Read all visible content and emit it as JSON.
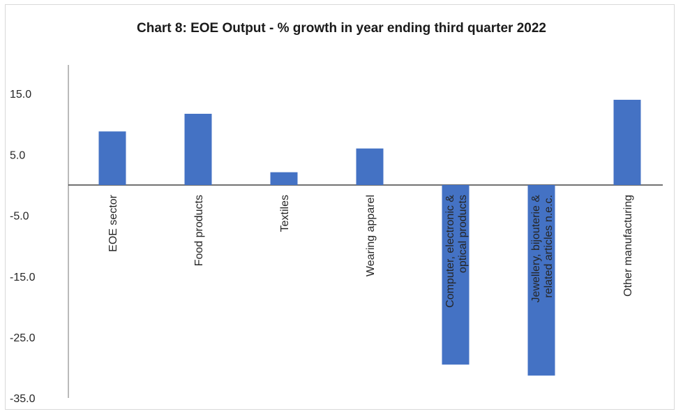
{
  "chart_data": {
    "type": "bar",
    "title": "Chart 8: EOE Output - % growth in year ending third quarter 2022",
    "xlabel": "",
    "ylabel": "",
    "ylim": [
      -35,
      20
    ],
    "y_ticks": [
      "15.0",
      "5.0",
      "-5.0",
      "-15.0",
      "-25.0",
      "-35.0"
    ],
    "y_tick_values": [
      15,
      5,
      -5,
      -15,
      -25,
      -35
    ],
    "categories": [
      [
        "EOE sector"
      ],
      [
        "Food products"
      ],
      [
        "Textiles"
      ],
      [
        "Wearing apparel"
      ],
      [
        "Computer, electronic &",
        "optical products"
      ],
      [
        "Jewellery, bijouterie &",
        "related articles n.e.c."
      ],
      [
        "Other manufacturing"
      ]
    ],
    "values": [
      8.8,
      11.7,
      2.1,
      6.0,
      -29.5,
      -31.3,
      14.0
    ],
    "bar_color": "#4472c4",
    "grid": false,
    "legend": "none"
  }
}
